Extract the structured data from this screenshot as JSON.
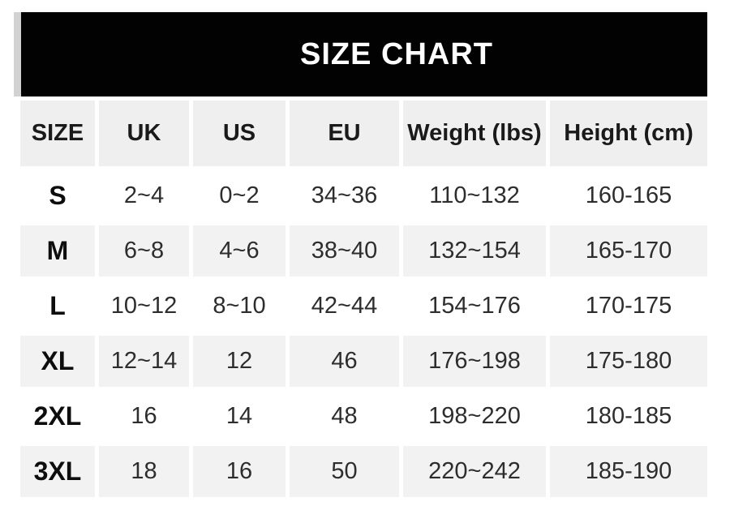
{
  "banner": {
    "title": "SIZE CHART"
  },
  "chart_data": {
    "type": "table",
    "title": "SIZE CHART",
    "columns": [
      "SIZE",
      "UK",
      "US",
      "EU",
      "Weight (lbs)",
      "Height (cm)"
    ],
    "rows": [
      [
        "S",
        "2~4",
        "0~2",
        "34~36",
        "110~132",
        "160-165"
      ],
      [
        "M",
        "6~8",
        "4~6",
        "38~40",
        "132~154",
        "165-170"
      ],
      [
        "L",
        "10~12",
        "8~10",
        "42~44",
        "154~176",
        "170-175"
      ],
      [
        "XL",
        "12~14",
        "12",
        "46",
        "176~198",
        "175-180"
      ],
      [
        "2XL",
        "16",
        "14",
        "48",
        "198~220",
        "180-185"
      ],
      [
        "3XL",
        "18",
        "16",
        "50",
        "220~242",
        "185-190"
      ]
    ],
    "colors": {
      "banner_background": "#020202",
      "banner_text": "#ffffff",
      "banner_edge_strip": "#d2d2d2",
      "header_row_background": "#efefef",
      "alt_row_background": "#f2f2f2",
      "row_background": "#ffffff",
      "text": "#2d2d2d"
    }
  }
}
